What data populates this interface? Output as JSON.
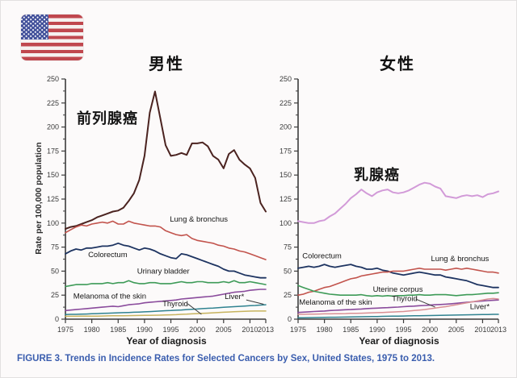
{
  "page": {
    "caption": "FIGURE 3. Trends in Incidence Rates for Selected Cancers by Sex, United States, 1975 to 2013.",
    "caption_color": "#3a5dae"
  },
  "icons": {
    "flag": "us-flag-icon"
  },
  "chart_data": [
    {
      "id": "male",
      "type": "line",
      "title": "男性",
      "big_label": {
        "text": "前列腺癌"
      },
      "xlabel": "Year of diagnosis",
      "ylabel": "Rate per 100,000 population",
      "xlim": [
        1975,
        2013
      ],
      "ylim": [
        0,
        250
      ],
      "x_ticks": [
        1975,
        1980,
        1985,
        1990,
        1995,
        2000,
        2005,
        2010,
        2013
      ],
      "y_ticks": [
        0,
        25,
        50,
        75,
        100,
        125,
        150,
        175,
        200,
        225,
        250
      ],
      "grid": false,
      "years": [
        1975,
        1976,
        1977,
        1978,
        1979,
        1980,
        1981,
        1982,
        1983,
        1984,
        1985,
        1986,
        1987,
        1988,
        1989,
        1990,
        1991,
        1992,
        1993,
        1994,
        1995,
        1996,
        1997,
        1998,
        1999,
        2000,
        2001,
        2002,
        2003,
        2004,
        2005,
        2006,
        2007,
        2008,
        2009,
        2010,
        2011,
        2012,
        2013
      ],
      "series": [
        {
          "name": "Prostate",
          "color": "#4b2320",
          "width": 2,
          "values": [
            94,
            96,
            97,
            99,
            101,
            103,
            106,
            108,
            110,
            112,
            113,
            116,
            123,
            131,
            145,
            170,
            215,
            237,
            209,
            181,
            170,
            171,
            173,
            171,
            183,
            183,
            184,
            180,
            170,
            166,
            157,
            172,
            176,
            166,
            161,
            157,
            147,
            121,
            112
          ]
        },
        {
          "name": "Lung & bronchus",
          "color": "#c2534c",
          "width": 1.6,
          "values": [
            90,
            93,
            96,
            98,
            97,
            99,
            100,
            101,
            100,
            102,
            99,
            99,
            102,
            100,
            99,
            98,
            97,
            97,
            96,
            92,
            90,
            88,
            87,
            88,
            84,
            82,
            81,
            80,
            79,
            77,
            76,
            74,
            73,
            71,
            70,
            68,
            66,
            64,
            62
          ]
        },
        {
          "name": "Colorectum",
          "color": "#1e3461",
          "width": 1.8,
          "values": [
            68,
            71,
            73,
            72,
            74,
            74,
            75,
            76,
            76,
            77,
            79,
            77,
            76,
            74,
            72,
            74,
            73,
            71,
            68,
            66,
            64,
            63,
            68,
            67,
            65,
            63,
            61,
            59,
            57,
            55,
            52,
            50,
            50,
            48,
            46,
            45,
            44,
            43,
            43
          ]
        },
        {
          "name": "Urinary bladder",
          "color": "#3d9a57",
          "width": 1.6,
          "values": [
            34,
            35,
            36,
            36,
            36,
            37,
            37,
            37,
            38,
            37,
            38,
            38,
            40,
            38,
            37,
            37,
            38,
            38,
            37,
            37,
            37,
            38,
            39,
            38,
            38,
            39,
            39,
            38,
            38,
            38,
            39,
            38,
            40,
            38,
            38,
            39,
            38,
            37,
            36
          ]
        },
        {
          "name": "Melanoma of the skin",
          "color": "#8a4b9c",
          "width": 1.6,
          "values": [
            9,
            9.5,
            10,
            10.5,
            11,
            11.5,
            12,
            12.5,
            13,
            13.5,
            13,
            14,
            15,
            15.5,
            16,
            17,
            17.5,
            18,
            18.5,
            19,
            19.5,
            20,
            21,
            21.5,
            22,
            22.5,
            23,
            23.5,
            24,
            25,
            26,
            27,
            28,
            28.5,
            29,
            30,
            30.5,
            31,
            31
          ]
        },
        {
          "name": "Liver*",
          "color": "#2f8290",
          "width": 1.5,
          "values": [
            4.8,
            5,
            5,
            5.2,
            5.4,
            5.6,
            5.8,
            6,
            6.2,
            6.4,
            6.6,
            6.8,
            7,
            7.2,
            7.4,
            7.6,
            7.9,
            8.2,
            8.5,
            8.8,
            9,
            9.3,
            9.6,
            10,
            10.3,
            10.6,
            11,
            11.3,
            11.6,
            12,
            12.3,
            12.7,
            13,
            13.3,
            13.7,
            14,
            14.3,
            14.7,
            15
          ]
        },
        {
          "name": "Thyroid",
          "color": "#c7b35e",
          "width": 1.5,
          "values": [
            3,
            3,
            3,
            3.1,
            3.1,
            3.2,
            3.2,
            3.3,
            3.4,
            3.5,
            3.5,
            3.6,
            3.7,
            3.8,
            3.9,
            4,
            4,
            4.1,
            4.2,
            4.4,
            4.5,
            4.7,
            5,
            5.2,
            5.5,
            5.8,
            6,
            6.3,
            6.6,
            7,
            7.2,
            7.5,
            7.8,
            8,
            8.2,
            8.4,
            8.5,
            8.5,
            8.5
          ]
        }
      ],
      "annotations": [
        {
          "text": "Lung & bronchus",
          "year": 1994.8,
          "rate": 104,
          "anchor": "start"
        },
        {
          "text": "Colorectum",
          "year": 1979.3,
          "rate": 67,
          "anchor": "start"
        },
        {
          "text": "Urinary bladder",
          "year": 1988.6,
          "rate": 50,
          "anchor": "start"
        },
        {
          "text": "Melanoma of the skin",
          "year": 1976.5,
          "rate": 24,
          "anchor": "start"
        },
        {
          "text": "Thyroid",
          "year": 1993.4,
          "rate": 16,
          "anchor": "start",
          "pointer": [
            1998.2,
            16,
            2000.8,
            5
          ]
        },
        {
          "text": "Liver*",
          "year": 2005.2,
          "rate": 23.5,
          "anchor": "start",
          "pointer": [
            2009.3,
            20,
            2012.6,
            15.5
          ]
        }
      ]
    },
    {
      "id": "female",
      "type": "line",
      "title": "女性",
      "big_label": {
        "text": "乳腺癌"
      },
      "xlabel": "Year of diagnosis",
      "ylabel": "",
      "xlim": [
        1975,
        2013
      ],
      "ylim": [
        0,
        250
      ],
      "x_ticks": [
        1975,
        1980,
        1985,
        1990,
        1995,
        2000,
        2005,
        2010,
        2013
      ],
      "y_ticks": [
        0,
        25,
        50,
        75,
        100,
        125,
        150,
        175,
        200,
        225,
        250
      ],
      "grid": false,
      "years": [
        1975,
        1976,
        1977,
        1978,
        1979,
        1980,
        1981,
        1982,
        1983,
        1984,
        1985,
        1986,
        1987,
        1988,
        1989,
        1990,
        1991,
        1992,
        1993,
        1994,
        1995,
        1996,
        1997,
        1998,
        1999,
        2000,
        2001,
        2002,
        2003,
        2004,
        2005,
        2006,
        2007,
        2008,
        2009,
        2010,
        2011,
        2012,
        2013
      ],
      "series": [
        {
          "name": "Breast",
          "color": "#d29ad8",
          "width": 2,
          "values": [
            102,
            101,
            100,
            100,
            102,
            103,
            107,
            110,
            115,
            120,
            126,
            130,
            135,
            131,
            128,
            132,
            134,
            135,
            132,
            131,
            132,
            134,
            137,
            140,
            142,
            141,
            138,
            136,
            128,
            127,
            126,
            128,
            129,
            128,
            129,
            127,
            130,
            131,
            133
          ]
        },
        {
          "name": "Colorectum",
          "color": "#1e3461",
          "width": 1.8,
          "values": [
            53,
            54,
            55,
            54,
            55,
            57,
            55,
            54,
            55,
            56,
            57,
            55,
            54,
            52,
            52,
            53,
            51,
            50,
            48,
            47,
            46,
            47,
            48,
            49,
            48,
            47,
            46,
            46,
            44,
            43,
            42,
            41,
            40,
            38,
            36,
            35,
            34,
            33,
            33
          ]
        },
        {
          "name": "Lung & bronchus",
          "color": "#c2534c",
          "width": 1.6,
          "values": [
            25,
            26,
            28,
            29,
            31,
            33,
            34,
            36,
            38,
            40,
            42,
            43,
            45,
            46,
            47,
            48,
            49,
            49,
            50,
            50,
            50,
            51,
            52,
            53,
            52,
            52,
            52,
            52,
            51,
            52,
            53,
            52,
            53,
            52,
            51,
            50,
            49,
            49,
            48
          ]
        },
        {
          "name": "Uterine corpus",
          "color": "#3d9a57",
          "width": 1.6,
          "values": [
            35,
            33,
            31,
            29,
            28,
            27,
            26,
            25.5,
            25,
            25,
            25,
            25,
            25.5,
            24.5,
            24,
            24.5,
            24,
            24.5,
            24,
            24.5,
            24.5,
            25,
            25,
            25.5,
            25,
            25,
            25.5,
            25.5,
            25.5,
            25,
            24.5,
            25,
            25.5,
            25.5,
            26,
            26.5,
            27,
            27,
            27.5
          ]
        },
        {
          "name": "Melanoma of the skin",
          "color": "#8a4b9c",
          "width": 1.6,
          "values": [
            7,
            7.3,
            7.6,
            8,
            8.2,
            8.5,
            9,
            9.2,
            9.5,
            9.8,
            10,
            10.3,
            10.6,
            11,
            11.2,
            11.5,
            11.8,
            12,
            12.3,
            12.6,
            13,
            13.3,
            13.6,
            14,
            14.3,
            14.6,
            15,
            15.3,
            15.6,
            16,
            16.5,
            17,
            17.5,
            18,
            18.5,
            19,
            19.3,
            19.6,
            20
          ]
        },
        {
          "name": "Thyroid",
          "color": "#d98f93",
          "width": 1.5,
          "values": [
            5,
            5,
            5.2,
            5.3,
            5.4,
            5.5,
            5.5,
            5.6,
            5.7,
            5.8,
            6,
            6,
            6.2,
            6.4,
            6.6,
            6.8,
            7,
            7.2,
            7.5,
            7.8,
            8,
            8.5,
            9,
            9.5,
            10,
            10.8,
            11.5,
            12.3,
            13,
            14,
            15,
            16,
            17,
            18,
            19,
            20,
            21,
            21.5,
            21
          ]
        },
        {
          "name": "Liver*",
          "color": "#2f8290",
          "width": 1.5,
          "values": [
            1.5,
            1.5,
            1.6,
            1.7,
            1.8,
            1.9,
            2,
            2,
            2.1,
            2.2,
            2.3,
            2.4,
            2.5,
            2.6,
            2.7,
            2.8,
            2.9,
            3,
            3.1,
            3.2,
            3.3,
            3.4,
            3.5,
            3.6,
            3.7,
            3.8,
            3.9,
            4,
            4.1,
            4.2,
            4.3,
            4.4,
            4.5,
            4.6,
            4.7,
            4.8,
            4.9,
            5,
            5
          ]
        }
      ],
      "annotations": [
        {
          "text": "Colorectum",
          "year": 1975.8,
          "rate": 66,
          "anchor": "start"
        },
        {
          "text": "Lung & bronchus",
          "year": 2000.2,
          "rate": 63,
          "anchor": "start"
        },
        {
          "text": "Uterine corpus",
          "year": 1989.2,
          "rate": 31,
          "anchor": "start"
        },
        {
          "text": "Melanoma of the skin",
          "year": 1975.2,
          "rate": 17.5,
          "anchor": "start"
        },
        {
          "text": "Thyroid",
          "year": 1992.8,
          "rate": 21.5,
          "anchor": "start",
          "pointer": [
            1997.3,
            21,
            2001,
            12.5
          ]
        },
        {
          "text": "Liver*",
          "year": 2007.6,
          "rate": 13,
          "anchor": "start"
        }
      ]
    }
  ]
}
